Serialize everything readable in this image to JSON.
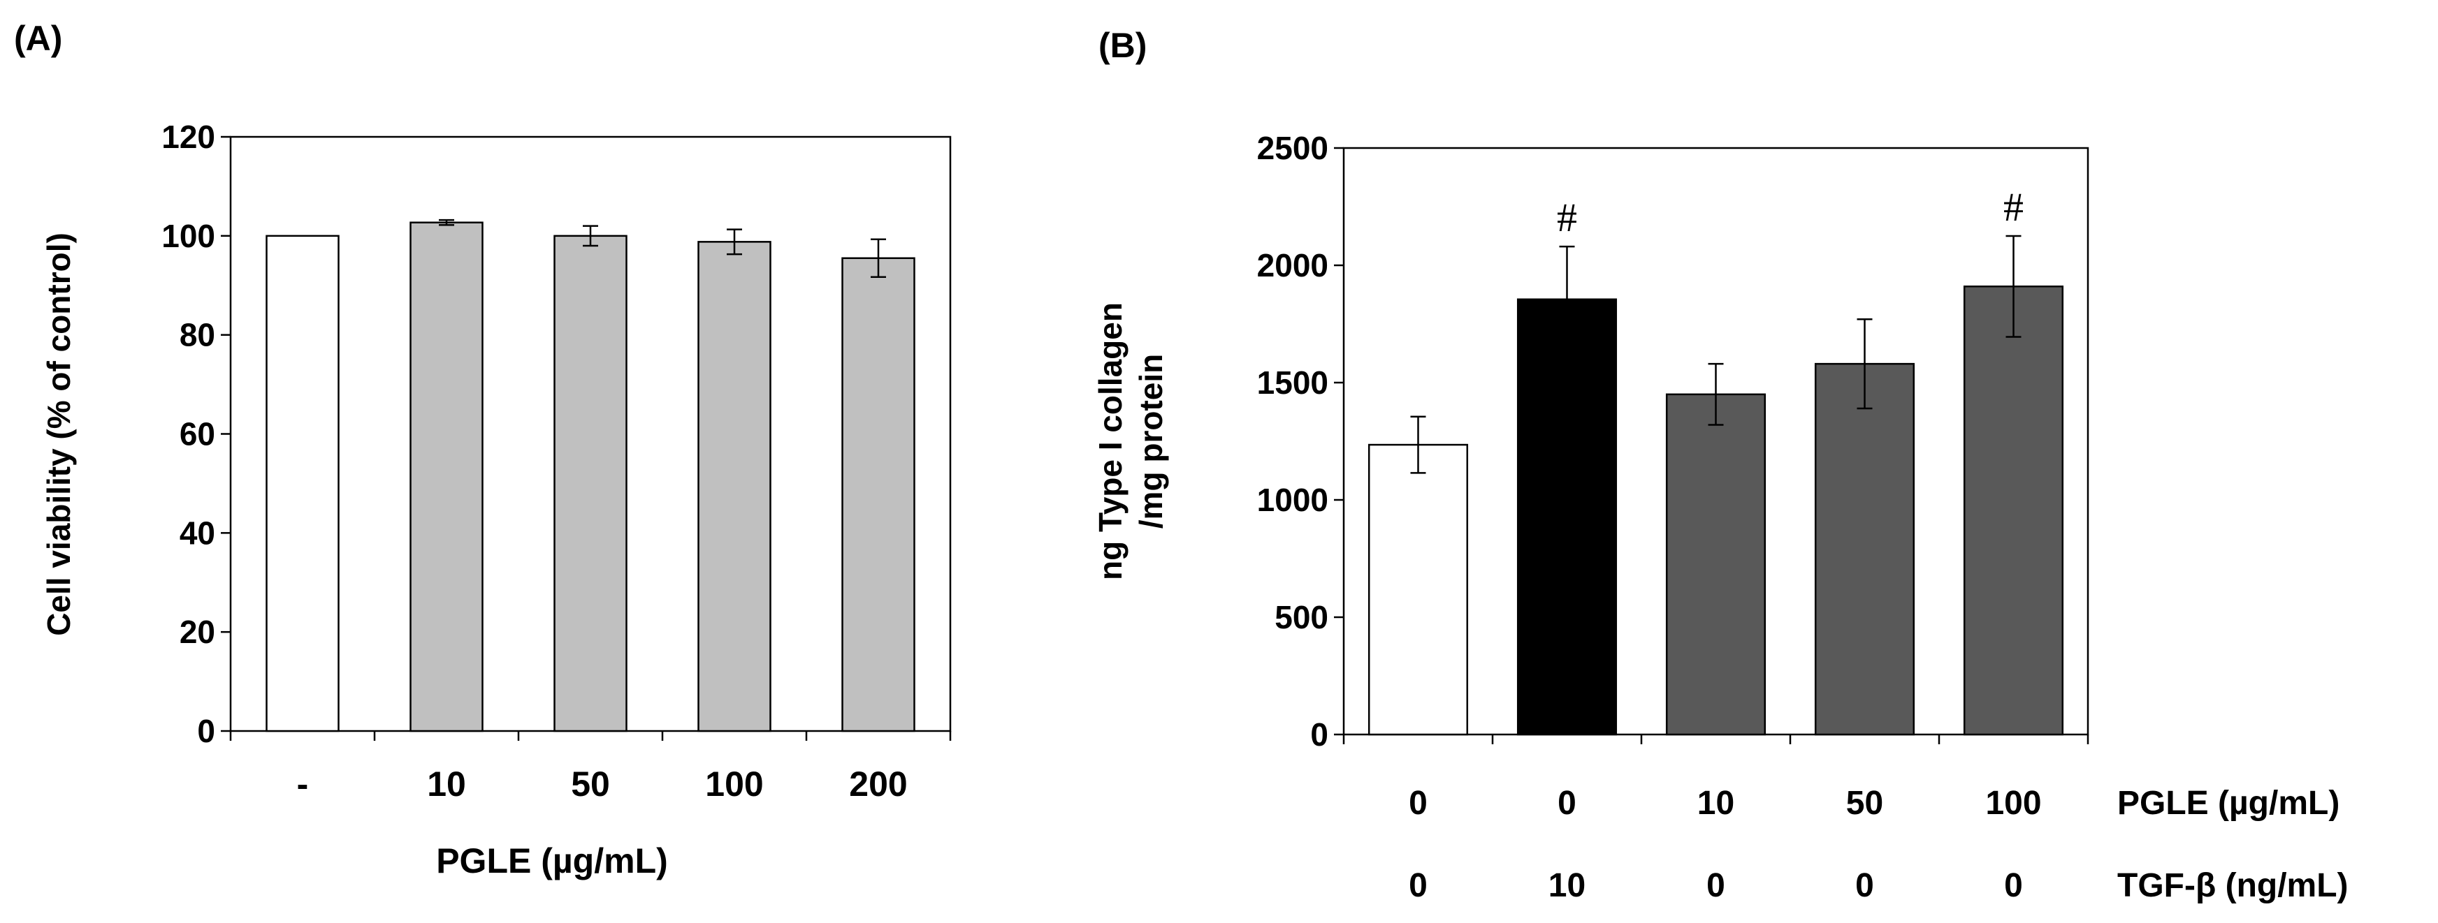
{
  "chart_data": [
    {
      "panel_label": "(A)",
      "type": "bar",
      "title": "",
      "xlabel": "PGLE (µg/mL)",
      "ylabel": "Cell viability (% of control)",
      "ylim": [
        0,
        120
      ],
      "yticks": [
        0,
        20,
        40,
        60,
        80,
        100,
        120
      ],
      "categories": [
        "-",
        "10",
        "50",
        "100",
        "200"
      ],
      "values": [
        100,
        102.7,
        100,
        98.8,
        95.5
      ],
      "errors": [
        0,
        0.5,
        2,
        2.5,
        3.8
      ],
      "bar_colors": [
        "#ffffff",
        "#c0c0c0",
        "#c0c0c0",
        "#c0c0c0",
        "#c0c0c0"
      ],
      "annotations": [
        "",
        "",
        "",
        "",
        ""
      ]
    },
    {
      "panel_label": "(B)",
      "type": "bar",
      "title": "",
      "ylabel_lines": [
        "ng Type I collagen",
        "/mg protein"
      ],
      "ylim": [
        0,
        2500
      ],
      "yticks": [
        0,
        500,
        1000,
        1500,
        2000,
        2500
      ],
      "categories": [
        "0/0",
        "0/10",
        "10/0",
        "50/0",
        "100/0"
      ],
      "values": [
        1235,
        1855,
        1450,
        1580,
        1910
      ],
      "errors": [
        120,
        225,
        130,
        190,
        215
      ],
      "bar_colors": [
        "#ffffff",
        "#000000",
        "#595959",
        "#595959",
        "#595959"
      ],
      "annotations": [
        "",
        "#",
        "",
        "",
        "#"
      ],
      "row_labels": [
        {
          "label": "PGLE (µg/mL)",
          "values": [
            "0",
            "0",
            "10",
            "50",
            "100"
          ]
        },
        {
          "label": "TGF-β (ng/mL)",
          "values": [
            "0",
            "10",
            "0",
            "0",
            "0"
          ]
        }
      ]
    }
  ]
}
